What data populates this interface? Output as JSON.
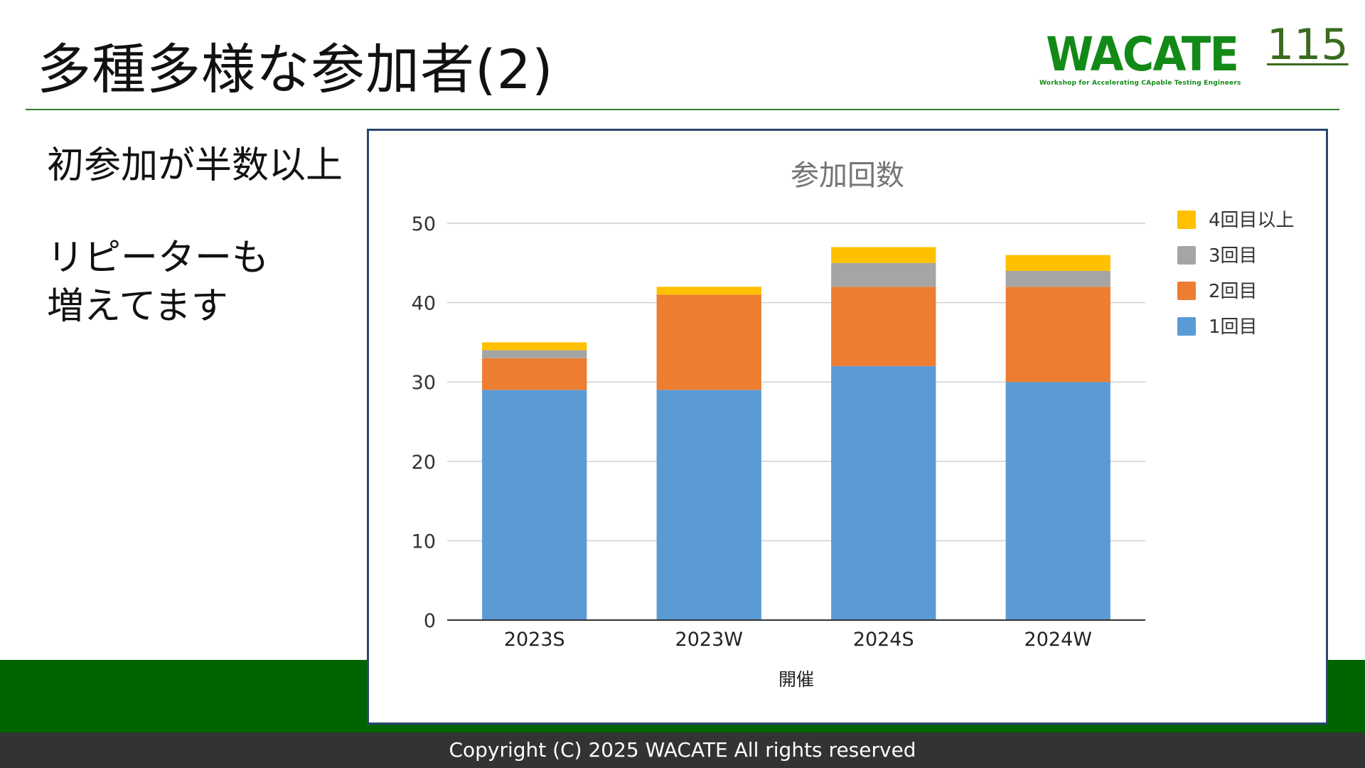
{
  "slide": {
    "title": "多種多様な参加者(2)",
    "page_number": "115",
    "logo_text": "WACATE",
    "logo_subtitle": "Workshop for Accelerating CApable Testing Engineers",
    "body_lines": [
      "初参加が半数以上",
      "リピーターも",
      "増えてます"
    ],
    "copyright": "Copyright (C) 2025 WACATE All rights reserved"
  },
  "colors": {
    "title_text": "#111111",
    "brand_green": "#138a17",
    "band_green": "#006400",
    "footer_bg": "#333333",
    "series_1": "#5b9bd5",
    "series_2": "#ed7d31",
    "series_3": "#a5a5a5",
    "series_4": "#ffc000"
  },
  "chart_data": {
    "type": "bar",
    "stacked": true,
    "title": "参加回数",
    "xlabel": "開催",
    "ylabel": "",
    "categories": [
      "2023S",
      "2023W",
      "2024S",
      "2024W"
    ],
    "yticks": [
      "0",
      "10",
      "20",
      "30",
      "40",
      "50"
    ],
    "ylim": [
      0,
      50
    ],
    "grid": true,
    "legend_position": "right",
    "series": [
      {
        "name": "1回目",
        "values": [
          29,
          29,
          32,
          30
        ],
        "color": "#5b9bd5"
      },
      {
        "name": "2回目",
        "values": [
          4,
          12,
          10,
          12
        ],
        "color": "#ed7d31"
      },
      {
        "name": "3回目",
        "values": [
          1,
          0,
          3,
          2
        ],
        "color": "#a5a5a5"
      },
      {
        "name": "4回目以上",
        "values": [
          1,
          1,
          2,
          2
        ],
        "color": "#ffc000"
      }
    ]
  }
}
